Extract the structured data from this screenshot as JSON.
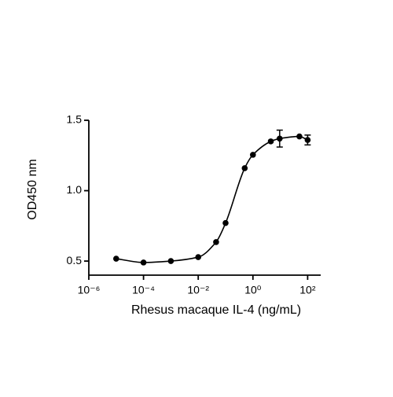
{
  "chart_data": {
    "type": "scatter",
    "x_label": "Rhesus macaque IL-4 (ng/mL)",
    "y_label": "OD450 nm",
    "x": [
      1e-05,
      0.0001,
      0.001,
      0.01,
      0.045,
      0.1,
      0.5,
      1,
      4.5,
      9.5,
      50,
      100
    ],
    "series": [
      {
        "color": "#000000",
        "values": [
          0.517,
          0.49,
          0.5,
          0.528,
          0.635,
          0.77,
          1.16,
          1.255,
          1.35,
          1.37,
          1.385,
          1.36
        ],
        "errors": [
          null,
          null,
          null,
          null,
          null,
          null,
          null,
          null,
          null,
          0.06,
          null,
          0.035
        ]
      }
    ],
    "xscale": "log",
    "xlim": [
      1e-06,
      300
    ],
    "xticks": [
      {
        "value": 1e-06,
        "label": "10⁻⁶"
      },
      {
        "value": 0.0001,
        "label": "10⁻⁴"
      },
      {
        "value": 0.01,
        "label": "10⁻²"
      },
      {
        "value": 1,
        "label": "10⁰"
      },
      {
        "value": 100,
        "label": "10²"
      }
    ],
    "ylim": [
      0.4,
      1.5
    ],
    "yticks": [
      0.5,
      {
        "value": 1,
        "label": "1.0"
      },
      1.5
    ],
    "grid": false
  }
}
